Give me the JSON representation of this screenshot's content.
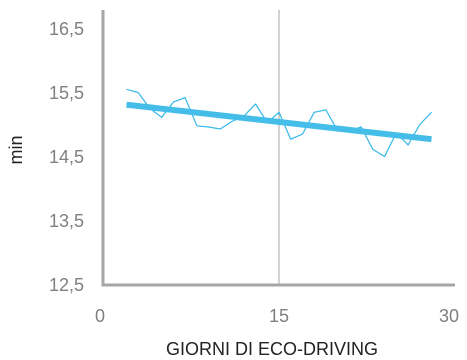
{
  "chart_data": {
    "type": "line",
    "xlabel": "GIORNI DI ECO-DRIVING",
    "ylabel": "min",
    "xlim": [
      0,
      30
    ],
    "ylim": [
      12.5,
      16.8
    ],
    "x_ticks": [
      0,
      15,
      30
    ],
    "x_tick_labels": [
      "0",
      "15",
      "30"
    ],
    "y_ticks": [
      12.5,
      13.5,
      14.5,
      15.5,
      16.5
    ],
    "y_tick_labels": [
      "12,5",
      "13,5",
      "14,5",
      "15,5",
      "16,5"
    ],
    "vertical_reference_line": {
      "x": 15
    },
    "grid": false,
    "legend": "none",
    "colors": {
      "daily": "#35b8e8",
      "trend": "#45bde9",
      "axis": "#a6a6a6",
      "reference": "#a6a6a6",
      "tick_text": "#7f7f7f"
    },
    "series": [
      {
        "role": "daily",
        "x": [
          2,
          3,
          4,
          5,
          6,
          7,
          8,
          9,
          10,
          11,
          12,
          13,
          14,
          15,
          16,
          17,
          18,
          19,
          20,
          21,
          22,
          23,
          24,
          25,
          26,
          27,
          28
        ],
        "values": [
          15.56,
          15.51,
          15.26,
          15.12,
          15.36,
          15.43,
          14.99,
          14.97,
          14.94,
          15.06,
          15.14,
          15.33,
          15.04,
          15.2,
          14.78,
          14.86,
          15.2,
          15.24,
          14.91,
          14.91,
          14.97,
          14.62,
          14.51,
          14.88,
          14.69,
          15.01,
          15.2
        ]
      },
      {
        "role": "trend",
        "x": [
          2,
          28
        ],
        "values": [
          15.32,
          14.78
        ]
      }
    ]
  }
}
